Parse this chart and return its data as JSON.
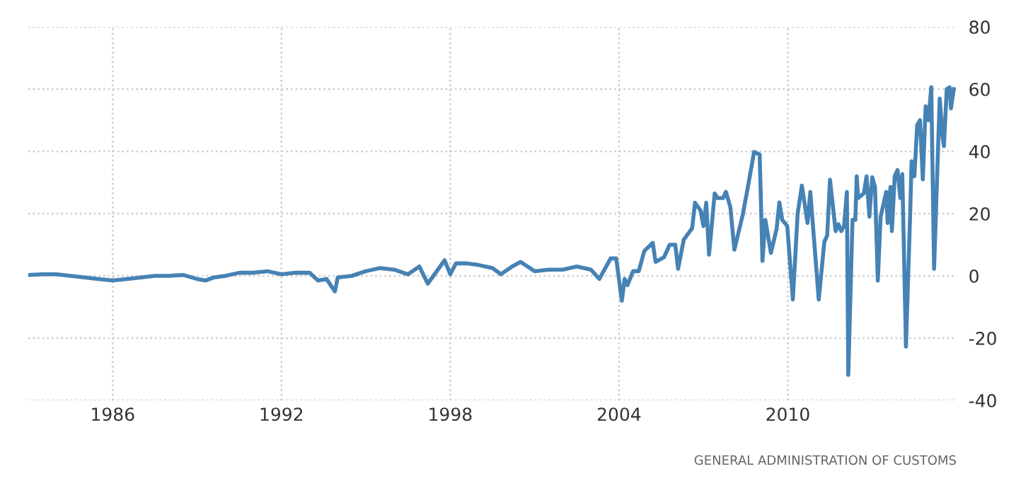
{
  "chart_data": {
    "type": "line",
    "x": [
      1983.0,
      1983.5,
      1984.0,
      1984.5,
      1985.0,
      1985.5,
      1986.0,
      1986.5,
      1987.0,
      1987.5,
      1988.0,
      1988.5,
      1989.0,
      1989.3,
      1989.6,
      1990.0,
      1990.5,
      1991.0,
      1991.5,
      1992.0,
      1992.5,
      1993.0,
      1993.3,
      1993.6,
      1993.9,
      1994.0,
      1994.5,
      1995.0,
      1995.5,
      1996.0,
      1996.5,
      1996.9,
      1997.2,
      1997.8,
      1998.0,
      1998.2,
      1998.6,
      1999.0,
      1999.5,
      1999.8,
      2000.2,
      2000.5,
      2001.0,
      2001.5,
      2002.0,
      2002.5,
      2003.0,
      2003.3,
      2003.7,
      2003.9,
      2004.1,
      2004.2,
      2004.3,
      2004.5,
      2004.7,
      2004.9,
      2005.2,
      2005.3,
      2005.6,
      2005.8,
      2006.0,
      2006.1,
      2006.3,
      2006.6,
      2006.7,
      2006.9,
      2007.0,
      2007.1,
      2007.2,
      2007.4,
      2007.5,
      2007.7,
      2007.8,
      2007.96,
      2008.1,
      2008.4,
      2008.6,
      2008.8,
      2009.0,
      2009.1,
      2009.2,
      2009.3,
      2009.4,
      2009.6,
      2009.7,
      2009.8,
      2009.98,
      2010.18,
      2010.35,
      2010.5,
      2010.7,
      2010.8,
      2011.1,
      2011.3,
      2011.4,
      2011.5,
      2011.7,
      2011.8,
      2011.9,
      2012.0,
      2012.1,
      2012.15,
      2012.3,
      2012.4,
      2012.45,
      2012.5,
      2012.7,
      2012.8,
      2012.9,
      2013.0,
      2013.1,
      2013.2,
      2013.3,
      2013.5,
      2013.55,
      2013.65,
      2013.7,
      2013.8,
      2013.9,
      2014.0,
      2014.07,
      2014.2,
      2014.35,
      2014.4,
      2014.5,
      2014.6,
      2014.7,
      2014.8,
      2014.9,
      2015.0,
      2015.1,
      2015.2,
      2015.4,
      2015.5,
      2015.55,
      2015.65,
      2015.75,
      2015.8,
      2015.9
    ],
    "values": [
      0.3,
      0.5,
      0.5,
      0,
      -0.5,
      -1,
      -1.5,
      -1,
      -0.5,
      0,
      0,
      0.3,
      -1,
      -1.5,
      -0.5,
      0,
      1,
      1,
      1.5,
      0.5,
      1,
      1,
      -1.5,
      -1,
      -5,
      -0.5,
      0,
      1.5,
      2.5,
      2,
      0.5,
      3,
      -2.5,
      5,
      0.5,
      4,
      4,
      3.5,
      2.5,
      0.5,
      3,
      4.5,
      1.5,
      2,
      2,
      3,
      2,
      -1,
      5.6,
      5.6,
      -8,
      -1,
      -3,
      1.5,
      1.5,
      8,
      10.6,
      4.5,
      6,
      10,
      10,
      2.3,
      11.6,
      15.3,
      23.5,
      21,
      16,
      23.5,
      6.8,
      26.5,
      25,
      25,
      27,
      22,
      8.4,
      19.7,
      29.5,
      39.8,
      39,
      4.8,
      18,
      12.7,
      7.4,
      15,
      23.6,
      18,
      16,
      -7.6,
      20,
      29,
      17,
      27,
      -7.6,
      11,
      13,
      30.9,
      14.4,
      16.6,
      14.4,
      16,
      27,
      -31.8,
      18,
      18,
      32,
      25,
      26.5,
      32,
      19,
      31.7,
      28.6,
      -1.5,
      19,
      27,
      17,
      28.6,
      14.4,
      32,
      34,
      25,
      32.7,
      -22.7,
      20,
      36.8,
      32,
      48.5,
      50,
      31,
      54.5,
      50,
      60.6,
      2.3,
      57,
      44.7,
      41.7,
      60,
      60.6,
      53.8,
      60
    ],
    "color": "#4682b4",
    "xlim": [
      1983.0,
      2016.0
    ],
    "xticks": [
      1986,
      1992,
      1998,
      2004,
      2010
    ],
    "ylim": [
      -40,
      80
    ],
    "yticks": [
      -40,
      -20,
      0,
      20,
      40,
      60,
      80
    ],
    "grid": true,
    "marker": "none",
    "line_style": "solid",
    "annotations": [
      "GENERAL ADMINISTRATION OF CUSTOMS"
    ]
  }
}
